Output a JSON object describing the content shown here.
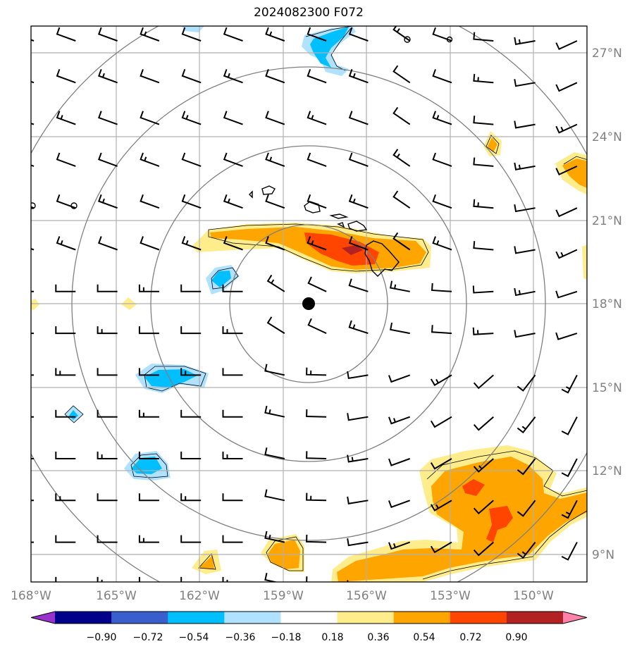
{
  "title": "2024082300 F072",
  "lat_labels": [
    "27°N",
    "24°N",
    "21°N",
    "18°N",
    "15°N",
    "12°N",
    "9°N"
  ],
  "lon_labels": [
    "168°W",
    "165°W",
    "162°W",
    "159°W",
    "156°W",
    "153°W",
    "150°W"
  ],
  "center_marker": {
    "lat": 18,
    "lon": -158
  },
  "colorbar": {
    "tick_labels": [
      "−0.90",
      "−0.72",
      "−0.54",
      "−0.36",
      "−0.18",
      "0.18",
      "0.36",
      "0.54",
      "0.72",
      "0.90"
    ],
    "colors": [
      "#9932cc",
      "#00008b",
      "#3a5fcd",
      "#00bfff",
      "#b0e2ff",
      "#ffffff",
      "#ffec8b",
      "#ffa500",
      "#ff4500",
      "#b22222",
      "#ff82ab"
    ]
  }
}
